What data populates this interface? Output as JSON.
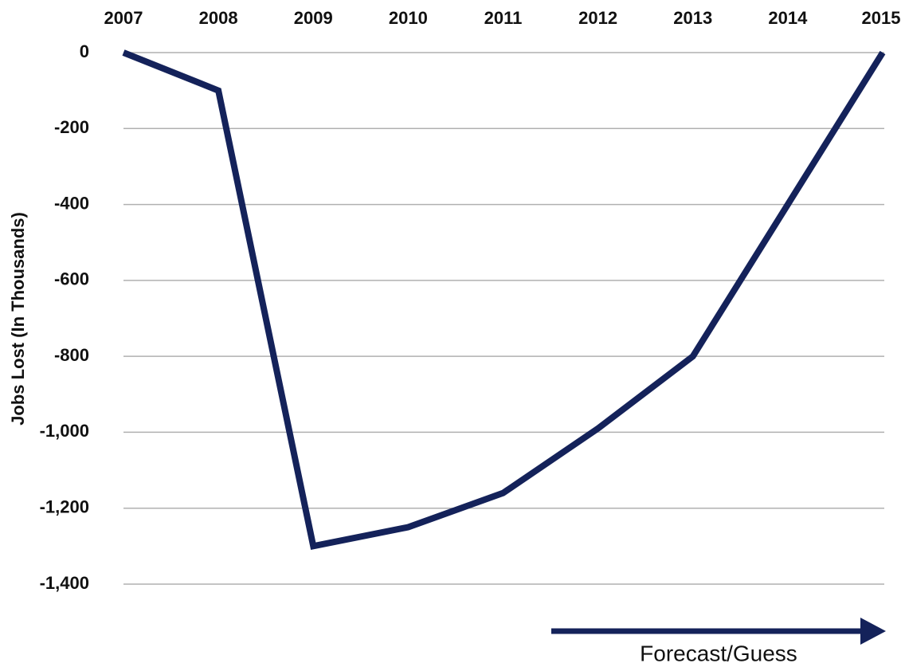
{
  "chart_data": {
    "type": "line",
    "ylabel": "Jobs Lost (In Thousands)",
    "categories": [
      "2007",
      "2008",
      "2009",
      "2010",
      "2011",
      "2012",
      "2013",
      "2014",
      "2015"
    ],
    "series": [
      {
        "name": "Jobs Lost",
        "color": "#14225a",
        "values": [
          0,
          -100,
          -1300,
          -1250,
          -1160,
          -990,
          -800,
          -400,
          0
        ]
      }
    ],
    "ylim": [
      -1400,
      0
    ],
    "yticks": [
      0,
      -200,
      -400,
      -600,
      -800,
      {
        "value": -1000,
        "label": "-1,000"
      },
      {
        "value": -1200,
        "label": "-1,200"
      },
      {
        "value": -1400,
        "label": "-1,400"
      }
    ],
    "grid": true,
    "annotation": "Forecast/Guess"
  }
}
